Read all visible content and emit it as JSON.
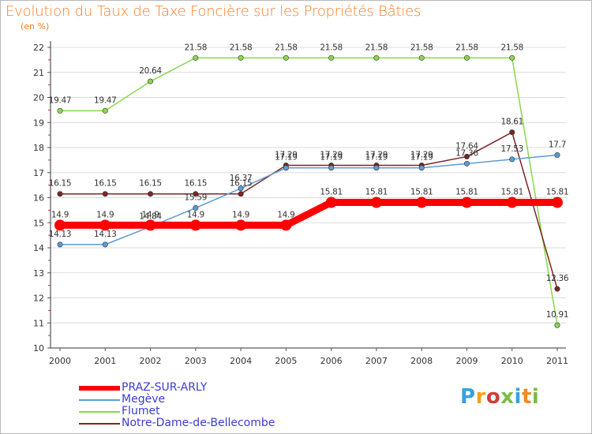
{
  "title": "Evolution du Taux de Taxe Foncière sur les Propriétés Bâties",
  "unit_label": "(en %)",
  "brand": "Proxiti",
  "colors": {
    "PRAZ-SUR-ARLY": "#ff0000",
    "Megève": "#5c9bd4",
    "Flumet": "#88d84e",
    "Notre-Dame-de-Bellecombe": "#7a2626"
  },
  "chart_data": {
    "type": "line",
    "title": "Evolution du Taux de Taxe Foncière sur les Propriétés Bâties",
    "ylabel": "(en %)",
    "xlabel": "",
    "ylim": [
      10,
      22
    ],
    "y_ticks": [
      "10",
      "11",
      "12",
      "13",
      "14",
      "15",
      "16",
      "17",
      "18",
      "19",
      "20",
      "21",
      "22"
    ],
    "categories": [
      "2000",
      "2001",
      "2002",
      "2003",
      "2004",
      "2005",
      "2006",
      "2007",
      "2008",
      "2009",
      "2010",
      "2011"
    ],
    "grid": "horizontal",
    "legend_position": "bottom-left",
    "series": [
      {
        "name": "PRAZ-SUR-ARLY",
        "values": [
          14.9,
          14.9,
          14.9,
          14.9,
          14.9,
          14.9,
          15.81,
          15.81,
          15.81,
          15.81,
          15.81,
          15.81
        ],
        "labels": [
          "14.9",
          "14.9",
          "14.9",
          "14.9",
          "14.9",
          "14.9",
          "15.81",
          "15.81",
          "15.81",
          "15.81",
          "15.81",
          "15.81"
        ]
      },
      {
        "name": "Megève",
        "values": [
          14.13,
          14.13,
          14.84,
          15.59,
          16.37,
          17.19,
          17.19,
          17.19,
          17.19,
          17.36,
          17.53,
          17.7
        ],
        "labels": [
          "14.13",
          "14.13",
          "14.84",
          "15.59",
          "16.37",
          "17.19",
          "17.19",
          "17.19",
          "17.19",
          "17.36",
          "17.53",
          "17.7"
        ]
      },
      {
        "name": "Flumet",
        "values": [
          19.47,
          19.47,
          20.64,
          21.58,
          21.58,
          21.58,
          21.58,
          21.58,
          21.58,
          21.58,
          21.58,
          10.91
        ],
        "labels": [
          "19.47",
          "19.47",
          "20.64",
          "21.58",
          "21.58",
          "21.58",
          "21.58",
          "21.58",
          "21.58",
          "21.58",
          "21.58",
          "10.91"
        ]
      },
      {
        "name": "Notre-Dame-de-Bellecombe",
        "values": [
          16.15,
          16.15,
          16.15,
          16.15,
          16.15,
          17.29,
          17.29,
          17.29,
          17.29,
          17.64,
          18.61,
          12.36
        ],
        "labels": [
          "16.15",
          "16.15",
          "16.15",
          "16.15",
          "16.15",
          "17.29",
          "17.29",
          "17.29",
          "17.29",
          "17.64",
          "18.61",
          "12.36"
        ]
      }
    ]
  }
}
